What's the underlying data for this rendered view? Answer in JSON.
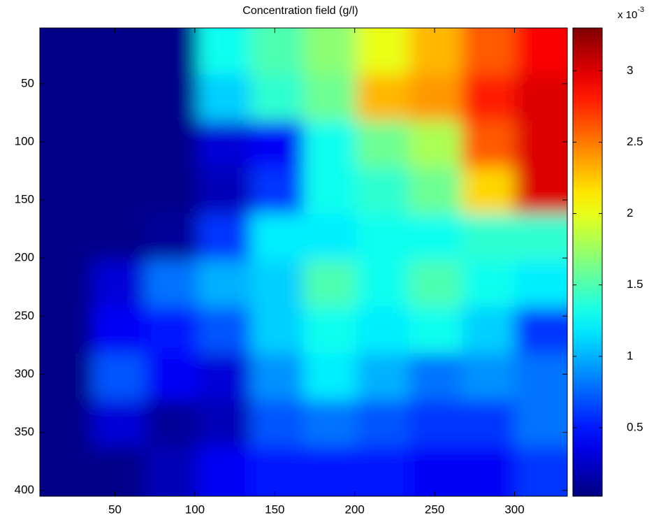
{
  "chart_data": {
    "type": "heatmap",
    "title": "Concentration field (g/l)",
    "colorbar_label": "x 10",
    "colorbar_exponent": "-3",
    "colormap": "jet",
    "x": [
      19.5,
      52.5,
      85.5,
      118.5,
      151.5,
      184.5,
      217.5,
      250.5,
      283.5,
      316.5
    ],
    "y": [
      22,
      62,
      102,
      142,
      182,
      222,
      262,
      302,
      342,
      382
    ],
    "z": [
      [
        0.05,
        0.05,
        0.05,
        1.3,
        1.5,
        1.7,
        2.0,
        2.3,
        2.6,
        2.9
      ],
      [
        0.05,
        0.05,
        0.05,
        1.1,
        1.4,
        1.6,
        2.3,
        2.4,
        2.8,
        3.0
      ],
      [
        0.05,
        0.05,
        0.05,
        0.3,
        0.4,
        1.3,
        1.6,
        1.8,
        2.6,
        3.0
      ],
      [
        0.05,
        0.05,
        0.05,
        0.2,
        0.6,
        1.3,
        1.4,
        1.6,
        2.2,
        3.0
      ],
      [
        0.05,
        0.05,
        0.1,
        0.6,
        1.2,
        1.2,
        1.3,
        1.3,
        1.4,
        1.4
      ],
      [
        0.05,
        0.3,
        0.8,
        1.0,
        1.1,
        1.5,
        1.3,
        1.5,
        1.3,
        1.2
      ],
      [
        0.05,
        0.4,
        0.5,
        0.7,
        1.1,
        1.3,
        1.2,
        1.3,
        1.1,
        0.6
      ],
      [
        0.05,
        0.7,
        0.4,
        0.3,
        0.9,
        1.2,
        1.0,
        0.8,
        0.9,
        0.8
      ],
      [
        0.05,
        0.3,
        0.1,
        0.2,
        0.7,
        0.8,
        0.7,
        0.6,
        0.6,
        0.8
      ],
      [
        0.05,
        0.05,
        0.2,
        0.4,
        0.5,
        0.5,
        0.5,
        0.4,
        0.4,
        0.6
      ]
    ],
    "xlim": [
      3,
      333
    ],
    "ylim": [
      2,
      405
    ],
    "y_reversed": true,
    "xticks": [
      50,
      100,
      150,
      200,
      250,
      300
    ],
    "yticks": [
      50,
      100,
      150,
      200,
      250,
      300,
      350,
      400
    ],
    "clim": [
      0.02,
      3.3
    ],
    "cticks": [
      0.5,
      1,
      1.5,
      2,
      2.5,
      3
    ]
  }
}
